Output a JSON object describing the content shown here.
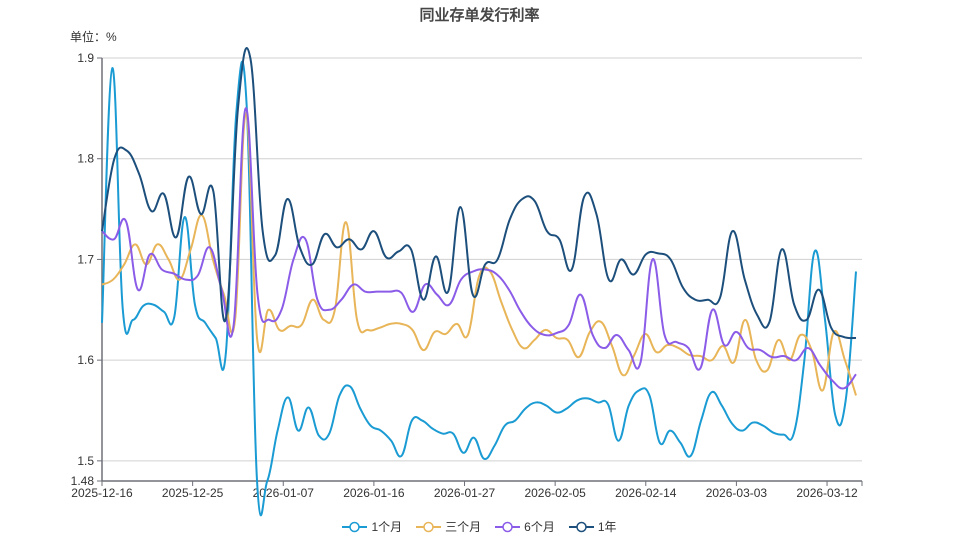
{
  "title": "同业存单发行利率",
  "unit_label": "单位：%",
  "legend": [
    {
      "name": "1个月",
      "color": "#1a9bd3"
    },
    {
      "name": "三个月",
      "color": "#e8b558"
    },
    {
      "name": "6个月",
      "color": "#8b5ce8"
    },
    {
      "name": "1年",
      "color": "#1d4f7c"
    }
  ],
  "chart_data": {
    "type": "line",
    "title": "同业存单发行利率",
    "xlabel": "",
    "ylabel": "单位：%",
    "ylim": [
      1.48,
      1.9
    ],
    "yticks": [
      1.48,
      1.5,
      1.6,
      1.7,
      1.8,
      1.9
    ],
    "xtick_labels": [
      "2025-12-16",
      "2025-12-25",
      "2026-01-07",
      "2026-01-16",
      "2026-01-27",
      "2026-02-05",
      "2026-02-14",
      "2026-03-03",
      "2026-03-12"
    ],
    "xtick_index": [
      0,
      9,
      18,
      27,
      36,
      45,
      54,
      63,
      72
    ],
    "grid": true,
    "legend_position": "bottom",
    "smooth": true,
    "series": [
      {
        "name": "1个月",
        "values": [
          1.637,
          1.89,
          1.652,
          1.64,
          1.654,
          1.655,
          1.648,
          1.643,
          1.742,
          1.655,
          1.637,
          1.622,
          1.608,
          1.845,
          1.854,
          1.482,
          1.48,
          1.53,
          1.563,
          1.53,
          1.553,
          1.525,
          1.527,
          1.565,
          1.574,
          1.552,
          1.535,
          1.53,
          1.52,
          1.505,
          1.54,
          1.54,
          1.532,
          1.527,
          1.527,
          1.508,
          1.523,
          1.502,
          1.515,
          1.535,
          1.54,
          1.552,
          1.558,
          1.555,
          1.548,
          1.552,
          1.56,
          1.562,
          1.558,
          1.556,
          1.52,
          1.555,
          1.57,
          1.565,
          1.518,
          1.53,
          1.518,
          1.505,
          1.54,
          1.568,
          1.555,
          1.537,
          1.53,
          1.538,
          1.535,
          1.528,
          1.526,
          1.528,
          1.6,
          1.708,
          1.64,
          1.545,
          1.56,
          1.688
        ]
      },
      {
        "name": "三个月",
        "values": [
          1.675,
          1.68,
          1.695,
          1.715,
          1.695,
          1.715,
          1.7,
          1.68,
          1.71,
          1.744,
          1.7,
          1.665,
          1.64,
          1.845,
          1.62,
          1.65,
          1.63,
          1.634,
          1.635,
          1.66,
          1.64,
          1.65,
          1.737,
          1.64,
          1.63,
          1.632,
          1.636,
          1.636,
          1.63,
          1.61,
          1.628,
          1.626,
          1.636,
          1.625,
          1.683,
          1.688,
          1.658,
          1.63,
          1.612,
          1.62,
          1.63,
          1.622,
          1.62,
          1.603,
          1.628,
          1.638,
          1.614,
          1.585,
          1.605,
          1.626,
          1.608,
          1.615,
          1.612,
          1.605,
          1.604,
          1.6,
          1.614,
          1.598,
          1.64,
          1.6,
          1.59,
          1.62,
          1.6,
          1.625,
          1.61,
          1.57,
          1.628,
          1.6,
          1.565
        ]
      },
      {
        "name": "6个月",
        "values": [
          1.728,
          1.72,
          1.738,
          1.67,
          1.705,
          1.69,
          1.686,
          1.68,
          1.684,
          1.712,
          1.67,
          1.635,
          1.85,
          1.665,
          1.64,
          1.65,
          1.7,
          1.72,
          1.66,
          1.65,
          1.66,
          1.675,
          1.668,
          1.668,
          1.668,
          1.667,
          1.648,
          1.675,
          1.665,
          1.655,
          1.68,
          1.688,
          1.69,
          1.685,
          1.67,
          1.648,
          1.632,
          1.625,
          1.627,
          1.635,
          1.665,
          1.625,
          1.612,
          1.625,
          1.61,
          1.598,
          1.7,
          1.625,
          1.618,
          1.612,
          1.592,
          1.65,
          1.615,
          1.628,
          1.612,
          1.61,
          1.603,
          1.604,
          1.6,
          1.612,
          1.595,
          1.58,
          1.572,
          1.586
        ]
      },
      {
        "name": "1年",
        "values": [
          1.728,
          1.8,
          1.808,
          1.785,
          1.748,
          1.765,
          1.722,
          1.782,
          1.745,
          1.768,
          1.64,
          1.85,
          1.9,
          1.728,
          1.704,
          1.76,
          1.712,
          1.695,
          1.725,
          1.712,
          1.72,
          1.71,
          1.728,
          1.702,
          1.708,
          1.71,
          1.66,
          1.703,
          1.668,
          1.752,
          1.665,
          1.695,
          1.7,
          1.74,
          1.76,
          1.758,
          1.728,
          1.72,
          1.69,
          1.762,
          1.745,
          1.68,
          1.7,
          1.685,
          1.705,
          1.706,
          1.7,
          1.672,
          1.66,
          1.66,
          1.662,
          1.728,
          1.68,
          1.645,
          1.638,
          1.71,
          1.655,
          1.64,
          1.67,
          1.632,
          1.623,
          1.622
        ]
      }
    ]
  }
}
